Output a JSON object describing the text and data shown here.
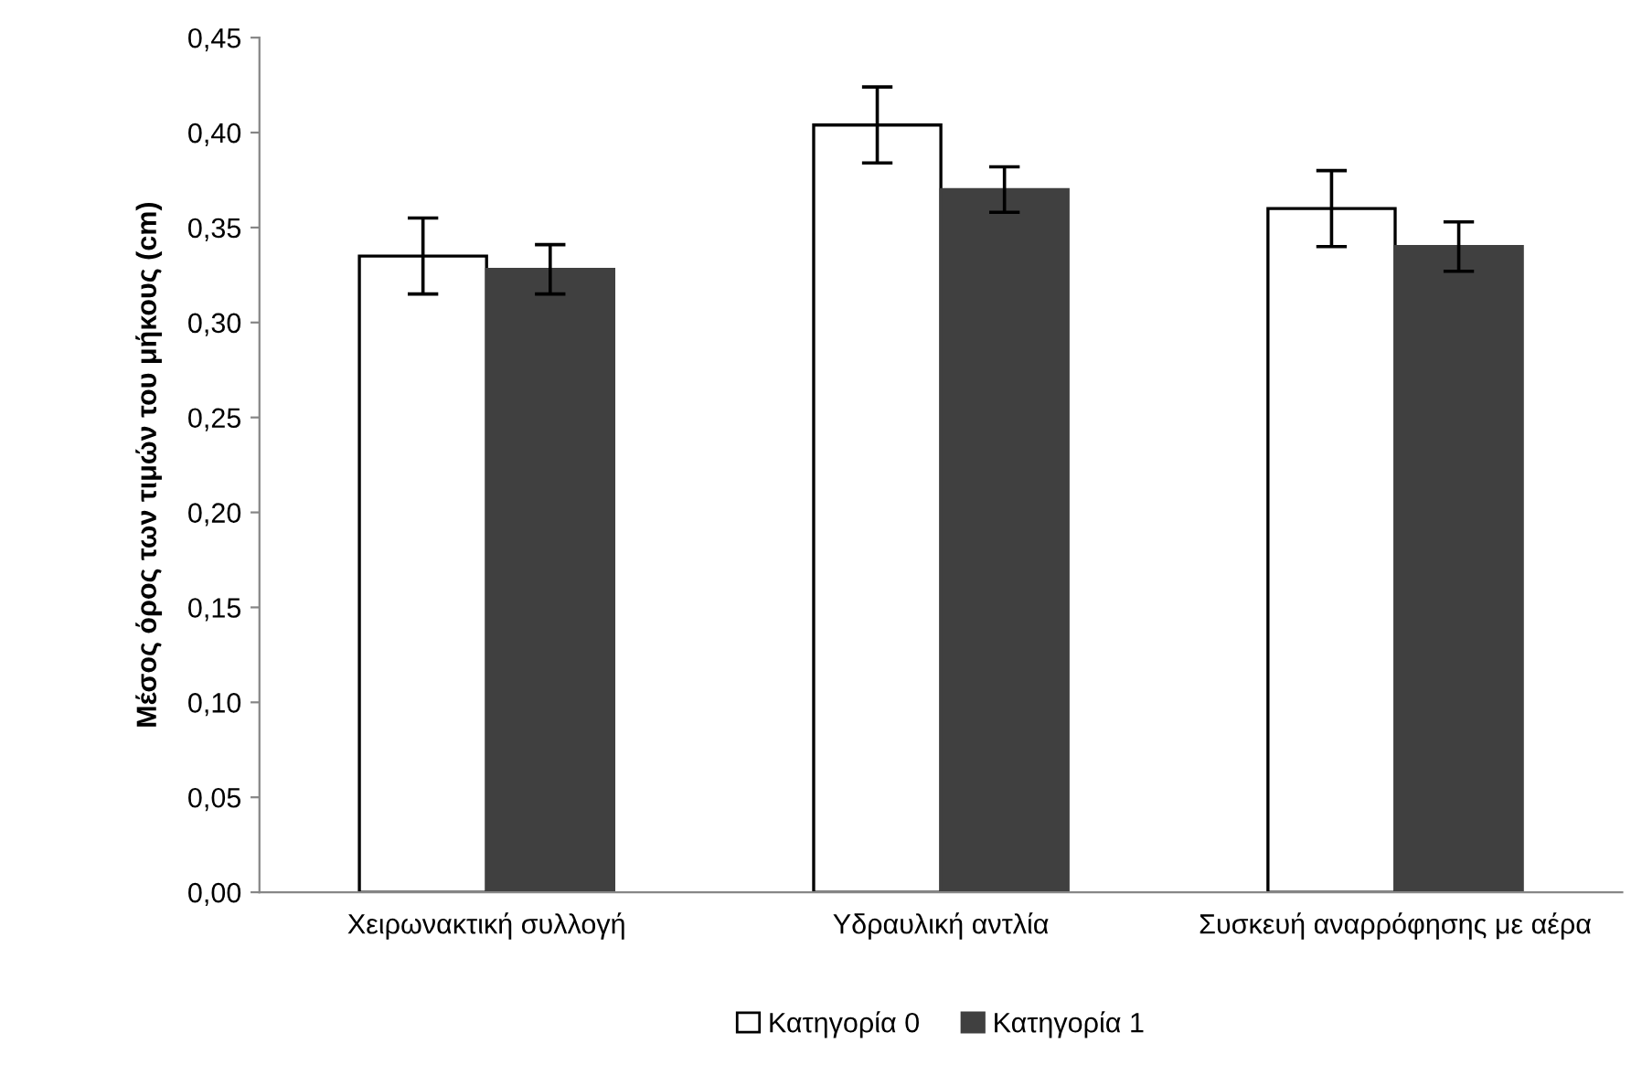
{
  "chart_data": {
    "type": "bar",
    "ylabel": "Μέσος όρος των τιμών του μήκους (cm)",
    "categories": [
      "Χειρωνακτική συλλογή",
      "Υδραυλική αντλία",
      "Συσκευή αναρρόφησης με αέρα"
    ],
    "series": [
      {
        "name": "Κατηγορία 0",
        "color": "#ffffff",
        "values": [
          0.335,
          0.404,
          0.36
        ],
        "errors": [
          0.02,
          0.02,
          0.02
        ]
      },
      {
        "name": "Κατηγορία 1",
        "color": "#404040",
        "values": [
          0.328,
          0.37,
          0.34
        ],
        "errors": [
          0.013,
          0.012,
          0.013
        ]
      }
    ],
    "ylim": [
      0,
      0.45
    ],
    "yticks": [
      {
        "value": 0,
        "label": "0,00"
      },
      {
        "value": 0.05,
        "label": "0,05"
      },
      {
        "value": 0.1,
        "label": "0,10"
      },
      {
        "value": 0.15,
        "label": "0,15"
      },
      {
        "value": 0.2,
        "label": "0,20"
      },
      {
        "value": 0.25,
        "label": "0,25"
      },
      {
        "value": 0.3,
        "label": "0,30"
      },
      {
        "value": 0.35,
        "label": "0,35"
      },
      {
        "value": 0.4,
        "label": "0,40"
      },
      {
        "value": 0.45,
        "label": "0,45"
      }
    ],
    "grid": false,
    "legend": "bottom"
  }
}
